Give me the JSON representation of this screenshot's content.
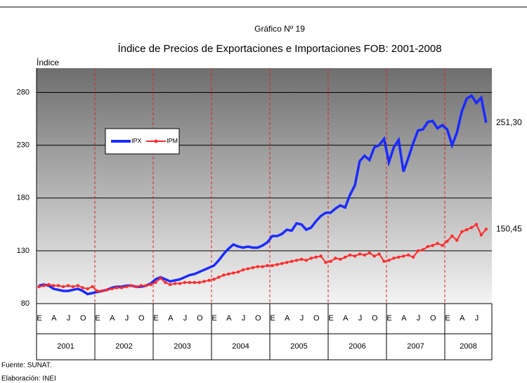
{
  "chart_data": {
    "type": "line",
    "title": "Gráfico Nº 19",
    "subtitle": "Índice de Precios de Exportaciones e Importaciones FOB: 2001-2008",
    "y_label": "Índice",
    "categories": [
      "E",
      null,
      null,
      "A",
      null,
      null,
      "J",
      null,
      null,
      "O",
      null,
      null,
      "E",
      null,
      null,
      "A",
      null,
      null,
      "J",
      null,
      null,
      "O",
      null,
      null,
      "E",
      null,
      null,
      "A",
      null,
      null,
      "J",
      null,
      null,
      "O",
      null,
      null,
      "E",
      null,
      null,
      "A",
      null,
      null,
      "J",
      null,
      null,
      "O",
      null,
      null,
      "E",
      null,
      null,
      "A",
      null,
      null,
      "J",
      null,
      null,
      "O",
      null,
      null,
      "E",
      null,
      null,
      "A",
      null,
      null,
      "J",
      null,
      null,
      "O",
      null,
      null,
      "E",
      null,
      null,
      "A",
      null,
      null,
      "J",
      null,
      null,
      "O",
      null,
      null,
      "E",
      null,
      null,
      "A",
      null,
      null,
      "J",
      null,
      null
    ],
    "years": [
      "2001",
      "2002",
      "2003",
      "2004",
      "2005",
      "2006",
      "2007",
      "2008"
    ],
    "series": [
      {
        "name": "IPX",
        "color": "#1a2bff",
        "values": [
          97,
          98,
          97,
          94,
          93,
          92,
          92,
          93,
          94,
          92,
          89,
          90,
          91,
          92,
          93,
          95,
          96,
          96,
          97,
          97,
          96,
          96,
          97,
          99,
          103,
          105,
          103,
          101,
          102,
          103,
          105,
          107,
          108,
          110,
          112,
          114,
          116,
          121,
          127,
          132,
          136,
          134,
          133,
          134,
          133,
          133,
          135,
          138,
          144,
          144,
          146,
          150,
          149,
          156,
          155,
          150,
          152,
          158,
          163,
          166,
          166,
          170,
          173,
          171,
          183,
          192,
          215,
          220,
          216,
          228,
          230,
          236,
          214,
          228,
          235,
          205,
          218,
          232,
          244,
          245,
          252,
          253,
          246,
          249,
          245,
          230,
          242,
          262,
          274,
          277,
          270,
          275,
          251.3
        ],
        "end_label": "251,30"
      },
      {
        "name": "IPM",
        "color": "#ff2a2a",
        "values": [
          96,
          97,
          98,
          97,
          97,
          96,
          97,
          96,
          97,
          95,
          94,
          96,
          92,
          92,
          93,
          94,
          95,
          95,
          96,
          97,
          96,
          97,
          97,
          98,
          100,
          104,
          100,
          98,
          99,
          99,
          100,
          100,
          100,
          100,
          101,
          102,
          103,
          105,
          107,
          108,
          109,
          110,
          112,
          113,
          114,
          115,
          115,
          116,
          116,
          117,
          118,
          119,
          120,
          121,
          122,
          121,
          123,
          124,
          125,
          119,
          120,
          123,
          122,
          124,
          126,
          125,
          127,
          126,
          128,
          125,
          127,
          120,
          121,
          123,
          124,
          125,
          126,
          124,
          130,
          131,
          134,
          135,
          137,
          135,
          139,
          144,
          140,
          148,
          150,
          152,
          155,
          145,
          150.45
        ],
        "end_label": "150,45"
      }
    ],
    "ylim": [
      80,
      303
    ],
    "yticks": [
      80,
      130,
      180,
      230,
      280
    ],
    "grid": true
  },
  "footer": [
    "Fuente: SUNAT.",
    "Elaboración: INEI"
  ]
}
